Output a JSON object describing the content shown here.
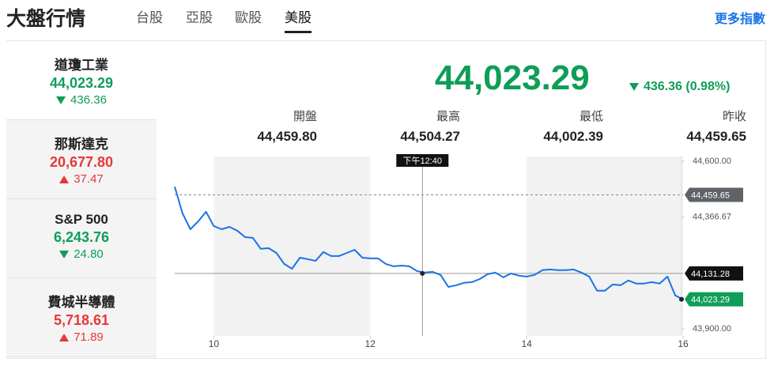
{
  "header": {
    "title": "大盤行情",
    "tabs": [
      "台股",
      "亞股",
      "歐股",
      "美股"
    ],
    "active_tab": 3,
    "more_link": "更多指數"
  },
  "indices": {
    "selected": 0,
    "items": [
      {
        "name": "道瓊工業",
        "price": "44,023.29",
        "change": "436.36",
        "direction": "down"
      },
      {
        "name": "那斯達克",
        "price": "20,677.80",
        "change": "37.47",
        "direction": "up"
      },
      {
        "name": "S&P 500",
        "price": "6,243.76",
        "change": "24.80",
        "direction": "down"
      },
      {
        "name": "費城半導體",
        "price": "5,718.61",
        "change": "71.89",
        "direction": "up"
      }
    ]
  },
  "quote": {
    "price": "44,023.29",
    "change": "436.36 (0.98%)",
    "direction": "down",
    "stats": [
      {
        "label": "開盤",
        "value": "44,459.80"
      },
      {
        "label": "最高",
        "value": "44,504.27"
      },
      {
        "label": "最低",
        "value": "44,002.39"
      },
      {
        "label": "昨收",
        "value": "44,459.65"
      }
    ]
  },
  "chart_data": {
    "type": "line",
    "x": [
      9.5,
      9.6,
      9.7,
      9.8,
      9.9,
      10.0,
      10.1,
      10.2,
      10.3,
      10.4,
      10.5,
      10.6,
      10.7,
      10.8,
      10.9,
      11.0,
      11.1,
      11.2,
      11.3,
      11.4,
      11.5,
      11.6,
      11.7,
      11.8,
      11.9,
      12.0,
      12.1,
      12.2,
      12.3,
      12.4,
      12.5,
      12.6,
      12.7,
      12.8,
      12.9,
      13.0,
      13.1,
      13.2,
      13.3,
      13.4,
      13.5,
      13.6,
      13.7,
      13.8,
      13.9,
      14.0,
      14.1,
      14.2,
      14.3,
      14.4,
      14.5,
      14.6,
      14.7,
      14.8,
      14.9,
      15.0,
      15.1,
      15.2,
      15.3,
      15.4,
      15.5,
      15.6,
      15.7,
      15.8,
      15.9,
      16.0
    ],
    "series": [
      {
        "name": "道瓊工業",
        "color": "#1a73e8",
        "values": [
          44494,
          44382,
          44316,
          44349,
          44389,
          44329,
          44316,
          44326,
          44310,
          44283,
          44280,
          44234,
          44237,
          44217,
          44171,
          44151,
          44197,
          44191,
          44184,
          44221,
          44204,
          44204,
          44217,
          44230,
          44197,
          44194,
          44194,
          44171,
          44161,
          44164,
          44161,
          44141,
          44135,
          44138,
          44125,
          44075,
          44082,
          44092,
          44095,
          44108,
          44128,
          44135,
          44115,
          44131,
          44122,
          44118,
          44125,
          44145,
          44148,
          44145,
          44145,
          44148,
          44135,
          44118,
          44059,
          44059,
          44085,
          44082,
          44102,
          44089,
          44089,
          44095,
          44089,
          44118,
          44039,
          44023.29
        ]
      }
    ],
    "xlim": [
      9.5,
      16
    ],
    "xticks": [
      10,
      12,
      14,
      16
    ],
    "ylim": [
      43870,
      44620
    ],
    "yticks": [
      {
        "value": 44600,
        "label": "44,600.00"
      },
      {
        "value": 44366.67,
        "label": "44,366.67"
      },
      {
        "value": 43900,
        "label": "43,900.00"
      }
    ],
    "prev_close": {
      "value": 44459.65,
      "label": "44,459.65",
      "color": "#5f6368"
    },
    "crosshair": {
      "x": 12.667,
      "x_label": "下午12:40",
      "value": 44131.28,
      "label": "44,131.28",
      "color": "#111111"
    },
    "last": {
      "value": 44023.29,
      "label": "44,023.29",
      "color": "#0f9d58"
    }
  }
}
